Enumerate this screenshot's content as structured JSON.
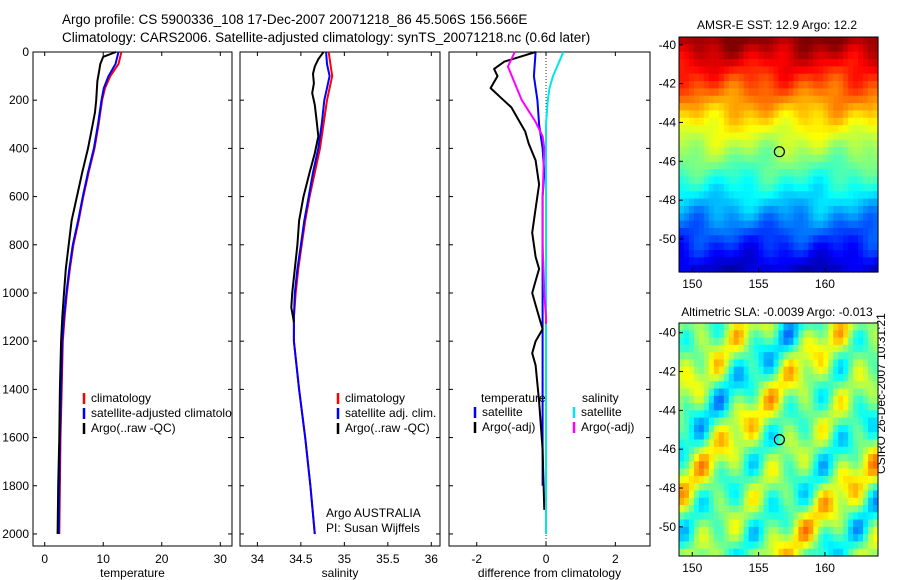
{
  "header": {
    "title_line1": "Argo profile: CS 5900336_108 17-Dec-2007 20071218_86 45.506S 156.566E",
    "title_line2": "Climatology: CARS2006. Satellite-adjusted climatology: synTS_20071218.nc (0.6d later)"
  },
  "credit": "CSIRO 26-Dec-2007 10:31:21",
  "colors": {
    "climatology": "#ff0000",
    "satellite": "#0000ff",
    "argo": "#000000",
    "satellite_sal": "#00e5ee",
    "argo_sal": "#ff00ff"
  },
  "chart_data": [
    {
      "type": "line",
      "id": "temperature",
      "xlabel": "temperature",
      "ylabel": "",
      "xlim": [
        -2,
        32
      ],
      "ylim": [
        0,
        2050
      ],
      "y_inverted": true,
      "xticks": [
        0,
        10,
        20,
        30
      ],
      "yticks": [
        0,
        200,
        400,
        600,
        800,
        1000,
        1200,
        1400,
        1600,
        1800,
        2000
      ],
      "legend": [
        "climatology",
        "satellite-adjusted climatology",
        "Argo(..raw -QC)"
      ],
      "series": [
        {
          "name": "climatology",
          "color": "#ff0000",
          "x": [
            13.1,
            12.6,
            11.2,
            10.3,
            9.8,
            9.2,
            8.5,
            7.5,
            6.6,
            5.8,
            4.9,
            4.3,
            3.8,
            3.4,
            3.1,
            2.9,
            2.7,
            2.6,
            2.5
          ],
          "y": [
            0,
            50,
            100,
            150,
            200,
            300,
            400,
            500,
            600,
            700,
            800,
            900,
            1000,
            1100,
            1200,
            1400,
            1600,
            1800,
            2000
          ]
        },
        {
          "name": "satellite-adjusted climatology",
          "color": "#0000ff",
          "x": [
            12.6,
            12.1,
            10.9,
            10.1,
            9.7,
            9.1,
            8.4,
            7.4,
            6.5,
            5.7,
            4.8,
            4.2,
            3.7,
            3.3,
            3.0,
            2.8,
            2.6,
            2.5,
            2.4
          ],
          "y": [
            0,
            50,
            100,
            150,
            200,
            300,
            400,
            500,
            600,
            700,
            800,
            900,
            1000,
            1100,
            1200,
            1400,
            1600,
            1800,
            2000
          ]
        },
        {
          "name": "Argo(..raw -QC)",
          "color": "#000000",
          "x": [
            12.2,
            10.0,
            9.5,
            9.3,
            9.0,
            8.9,
            8.8,
            8.6,
            8.2,
            7.4,
            6.4,
            5.5,
            4.6,
            4.1,
            3.6,
            3.3,
            3.0,
            2.8,
            2.6,
            2.5,
            2.3,
            2.2
          ],
          "y": [
            0,
            20,
            50,
            80,
            120,
            160,
            200,
            250,
            300,
            400,
            500,
            600,
            700,
            800,
            900,
            1000,
            1100,
            1200,
            1400,
            1600,
            1800,
            2000
          ]
        }
      ]
    },
    {
      "type": "line",
      "id": "salinity",
      "xlabel": "salinity",
      "ylabel": "",
      "xlim": [
        33.8,
        36.1
      ],
      "ylim": [
        0,
        2050
      ],
      "y_inverted": true,
      "xticks": [
        34,
        34.5,
        35,
        35.5,
        36
      ],
      "xticklabels": [
        "34",
        "34.5",
        "35",
        "35.5",
        "36"
      ],
      "legend": [
        "climatology",
        "satellite adj. clim.",
        "Argo(..raw -QC)"
      ],
      "annotation_line1": "Argo AUSTRALIA",
      "annotation_line2": "PI: Susan Wijffels",
      "series": [
        {
          "name": "climatology",
          "color": "#ff0000",
          "x": [
            34.82,
            34.84,
            34.86,
            34.83,
            34.8,
            34.76,
            34.72,
            34.66,
            34.6,
            34.55,
            34.51,
            34.47,
            34.44,
            34.42,
            34.42,
            34.48,
            34.55,
            34.61,
            34.66
          ],
          "y": [
            0,
            50,
            100,
            150,
            200,
            300,
            400,
            500,
            600,
            700,
            800,
            900,
            1000,
            1100,
            1200,
            1400,
            1600,
            1800,
            2000
          ]
        },
        {
          "name": "satellite adj. clim.",
          "color": "#0000ff",
          "x": [
            34.79,
            34.8,
            34.83,
            34.8,
            34.77,
            34.74,
            34.7,
            34.64,
            34.59,
            34.54,
            34.5,
            34.46,
            34.43,
            34.42,
            34.42,
            34.48,
            34.55,
            34.61,
            34.66
          ],
          "y": [
            0,
            50,
            100,
            150,
            200,
            300,
            400,
            500,
            600,
            700,
            800,
            900,
            1000,
            1100,
            1200,
            1400,
            1600,
            1800,
            2000
          ]
        },
        {
          "name": "Argo(..raw -QC)",
          "color": "#000000",
          "x": [
            34.76,
            34.7,
            34.66,
            34.64,
            34.65,
            34.63,
            34.66,
            34.68,
            34.7,
            34.66,
            34.6,
            34.53,
            34.48,
            34.46,
            34.43,
            34.4,
            34.39,
            34.42
          ],
          "y": [
            0,
            30,
            60,
            90,
            130,
            170,
            220,
            280,
            350,
            420,
            500,
            600,
            700,
            800,
            900,
            1000,
            1060,
            1120
          ]
        }
      ]
    },
    {
      "type": "line",
      "id": "difference",
      "xlabel": "difference from climatology",
      "ylabel": "",
      "xlim": [
        -2.8,
        3.0
      ],
      "ylim": [
        0,
        2050
      ],
      "y_inverted": true,
      "xticks": [
        -2,
        0,
        2
      ],
      "legend_temperature_header": "temperature",
      "legend_salinity_header": "salinity",
      "legend": [
        "satellite",
        "Argo(-adj)",
        "satellite",
        "Argo(-adj)"
      ],
      "series": [
        {
          "name": "temperature satellite",
          "color": "#0000ff",
          "x": [
            -0.3,
            -0.35,
            -0.25,
            -0.2,
            -0.1,
            -0.05,
            -0.1,
            -0.1,
            -0.1,
            -0.1,
            -0.1,
            -0.1,
            -0.1,
            -0.1,
            -0.1,
            -0.1
          ],
          "y": [
            0,
            100,
            200,
            300,
            400,
            500,
            600,
            700,
            800,
            900,
            1000,
            1100,
            1200,
            1400,
            1600,
            1800
          ]
        },
        {
          "name": "temperature Argo(-adj)",
          "color": "#000000",
          "x": [
            -0.3,
            -1.2,
            -1.5,
            -1.4,
            -1.6,
            -1.3,
            -1.0,
            -0.8,
            -0.6,
            -0.5,
            -0.3,
            -0.2,
            -0.3,
            -0.4,
            -0.3,
            -0.2,
            -0.3,
            -0.4,
            -0.3,
            -0.2,
            -0.1,
            -0.3,
            -0.4,
            -0.3,
            -0.2,
            -0.1,
            -0.05
          ],
          "y": [
            0,
            40,
            70,
            100,
            150,
            190,
            230,
            280,
            330,
            380,
            450,
            550,
            650,
            750,
            850,
            900,
            950,
            1000,
            1050,
            1100,
            1150,
            1200,
            1250,
            1300,
            1450,
            1650,
            1900
          ]
        },
        {
          "name": "salinity satellite",
          "color": "#00e5ee",
          "x": [
            0.5,
            0.35,
            0.2,
            0.1,
            0.05,
            0.0,
            0.0,
            0.0,
            0.0,
            0.0,
            0.0,
            0.0,
            0.0,
            0.0,
            0.0,
            0.0,
            0.0
          ],
          "y": [
            0,
            50,
            100,
            150,
            200,
            300,
            400,
            600,
            800,
            1000,
            1200,
            1400,
            1600,
            1800,
            1900,
            2000,
            2000
          ]
        },
        {
          "name": "salinity Argo(-adj)",
          "color": "#ff00ff",
          "x": [
            -0.9,
            -1.1,
            -0.9,
            -0.7,
            -0.3,
            -0.1,
            -0.05,
            -0.1,
            -0.1,
            -0.05,
            0.0,
            0.0
          ],
          "y": [
            0,
            60,
            130,
            200,
            290,
            350,
            400,
            600,
            800,
            1000,
            1100,
            1130
          ]
        }
      ]
    },
    {
      "type": "heatmap",
      "id": "sst",
      "title": "AMSR-E SST: 12.9 Argo: 12.2",
      "xlim": [
        149,
        164
      ],
      "ylim": [
        -51.7,
        -39.6
      ],
      "xticks": [
        150,
        155,
        160
      ],
      "yticks": [
        -40,
        -42,
        -44,
        -46,
        -48,
        -50
      ],
      "marker": {
        "lon": 156.566,
        "lat": -45.506
      }
    },
    {
      "type": "heatmap",
      "id": "sla",
      "title": "Altimetric SLA: -0.0039 Argo: -0.013",
      "xlim": [
        149,
        164
      ],
      "ylim": [
        -51.5,
        -39.5
      ],
      "xticks": [
        150,
        155,
        160
      ],
      "yticks": [
        -40,
        -42,
        -44,
        -46,
        -48,
        -50
      ],
      "marker": {
        "lon": 156.566,
        "lat": -45.506
      }
    }
  ]
}
